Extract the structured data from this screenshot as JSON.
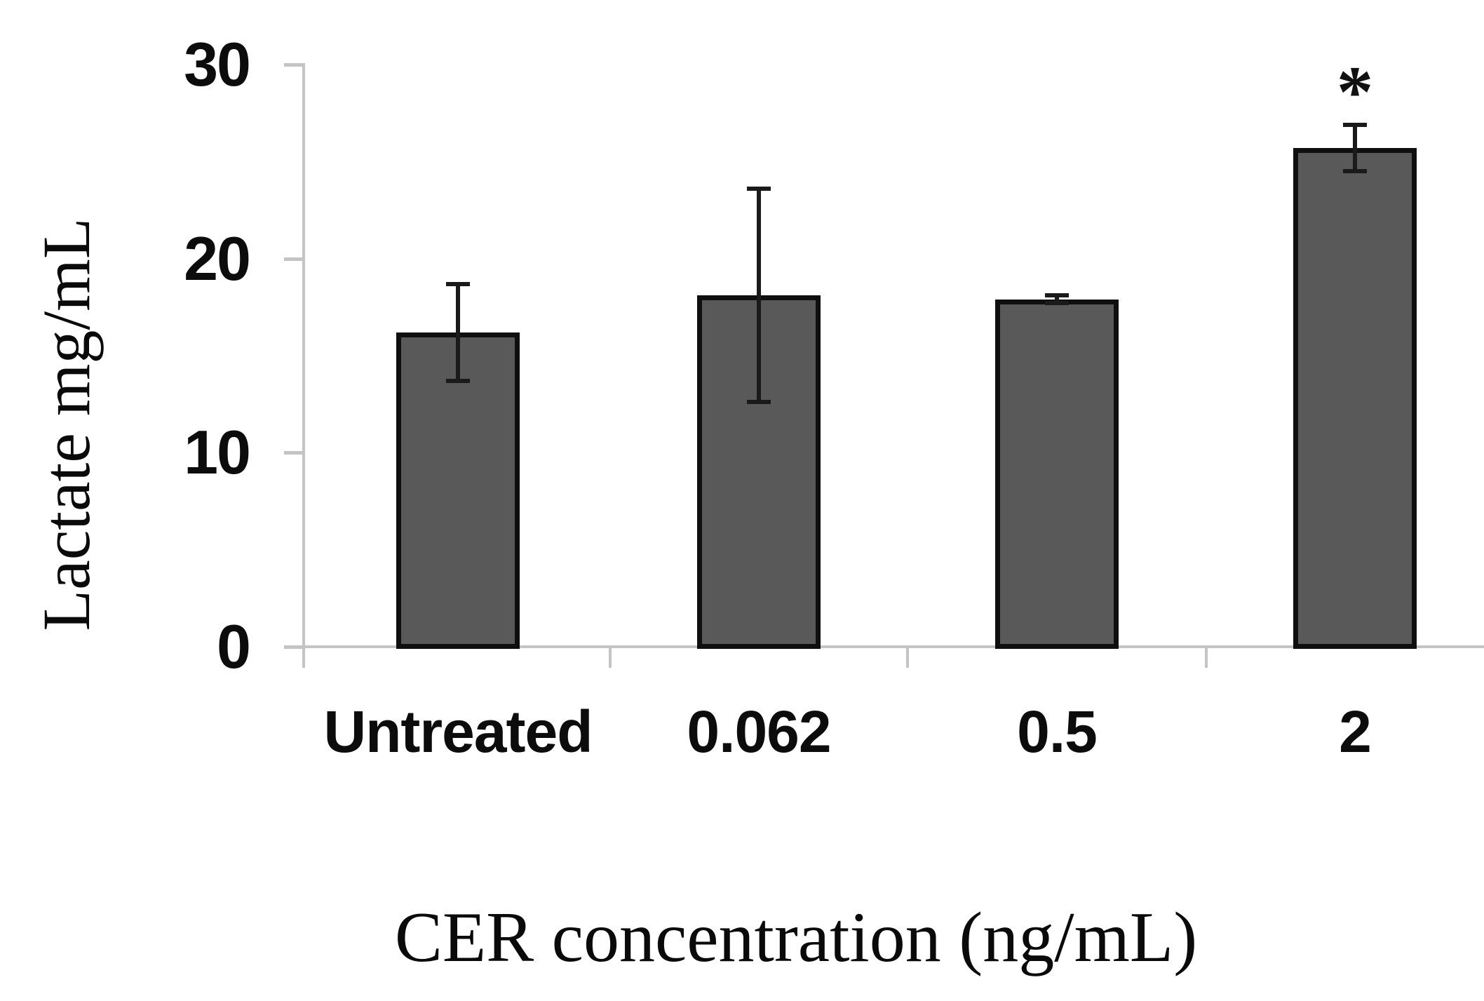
{
  "chart_data": {
    "type": "bar",
    "title": "",
    "xlabel": "CER concentration (ng/mL)",
    "ylabel": "Lactate mg/mL",
    "categories": [
      "Untreated",
      "0.062",
      "0.5",
      "2"
    ],
    "values": [
      16.2,
      18.1,
      17.9,
      25.7
    ],
    "errors": [
      2.5,
      5.5,
      0.2,
      1.2
    ],
    "significance": [
      "",
      "",
      "",
      "*"
    ],
    "ylim": [
      0,
      30
    ],
    "yticks": [
      0,
      10,
      20,
      30
    ],
    "grid": false,
    "legend": "none",
    "bar_style": {
      "fill": "#595959",
      "border_color": "#0f0f0f",
      "error_color": "#1a1a1a"
    },
    "axis_style": {
      "line_color": "#c4c4c4",
      "label_color": "#0c0c0c"
    }
  }
}
